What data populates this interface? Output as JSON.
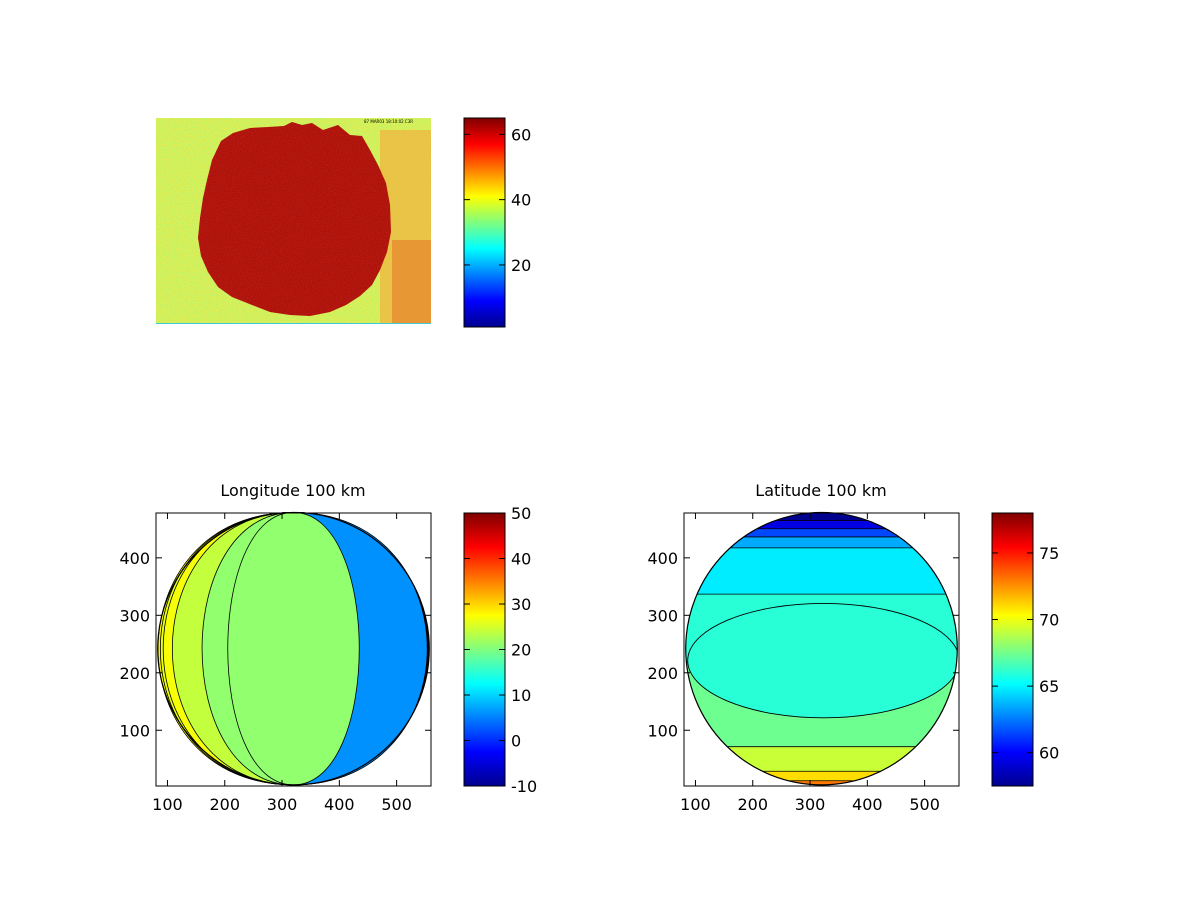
{
  "chart_data": [
    {
      "type": "heatmap",
      "title": "",
      "stamp": "87 MAR03 18:10:02 C3R",
      "colorbar": {
        "cmin": 1,
        "cmax": 65,
        "ticks": [
          20,
          40,
          60
        ]
      }
    },
    {
      "type": "heatmap",
      "title": "Longitude 100 km",
      "xlabel": "",
      "ylabel": "",
      "xlim": [
        80,
        560
      ],
      "ylim": [
        3,
        478
      ],
      "xticks": [
        100,
        200,
        300,
        400,
        500
      ],
      "yticks": [
        100,
        200,
        300,
        400
      ],
      "colorbar": {
        "cmin": -10,
        "cmax": 50,
        "ticks": [
          -10,
          0,
          10,
          20,
          30,
          40,
          50
        ]
      },
      "disc": {
        "center": [
          320,
          242
        ],
        "radius_x": 237,
        "radius_y": 237
      },
      "contours": [
        {
          "half_width": 237,
          "value": 28
        },
        {
          "half_width": 233,
          "value": 26
        },
        {
          "half_width": 228,
          "value": 27
        },
        {
          "half_width": 212,
          "value": 24
        },
        {
          "half_width": 160,
          "value": 21
        },
        {
          "half_width": 85,
          "value": 21
        },
        {
          "half_width": -215,
          "value": 17
        },
        {
          "half_width": -228,
          "value": 12
        },
        {
          "half_width": -234,
          "value": 6
        }
      ],
      "contour_direction": "vertical"
    },
    {
      "type": "heatmap",
      "title": "Latitude 100 km",
      "xlabel": "",
      "ylabel": "",
      "xlim": [
        80,
        560
      ],
      "ylim": [
        3,
        478
      ],
      "xticks": [
        100,
        200,
        300,
        400,
        500
      ],
      "yticks": [
        100,
        200,
        300,
        400
      ],
      "colorbar": {
        "cmin": 57.5,
        "cmax": 78,
        "ticks": [
          60,
          65,
          70,
          75
        ]
      },
      "disc": {
        "center": [
          320,
          242
        ],
        "radius_x": 237,
        "radius_y": 237
      },
      "bands_top_down": [
        {
          "value": 57.8
        },
        {
          "value": 59.5
        },
        {
          "value": 61.5
        },
        {
          "value": 63.5
        },
        {
          "value": 64.8
        },
        {
          "value": 66.0
        },
        {
          "value": 67.4
        },
        {
          "value": 69.2
        },
        {
          "value": 71.0
        },
        {
          "value": 73.0
        }
      ],
      "contour_direction": "horizontal"
    }
  ]
}
